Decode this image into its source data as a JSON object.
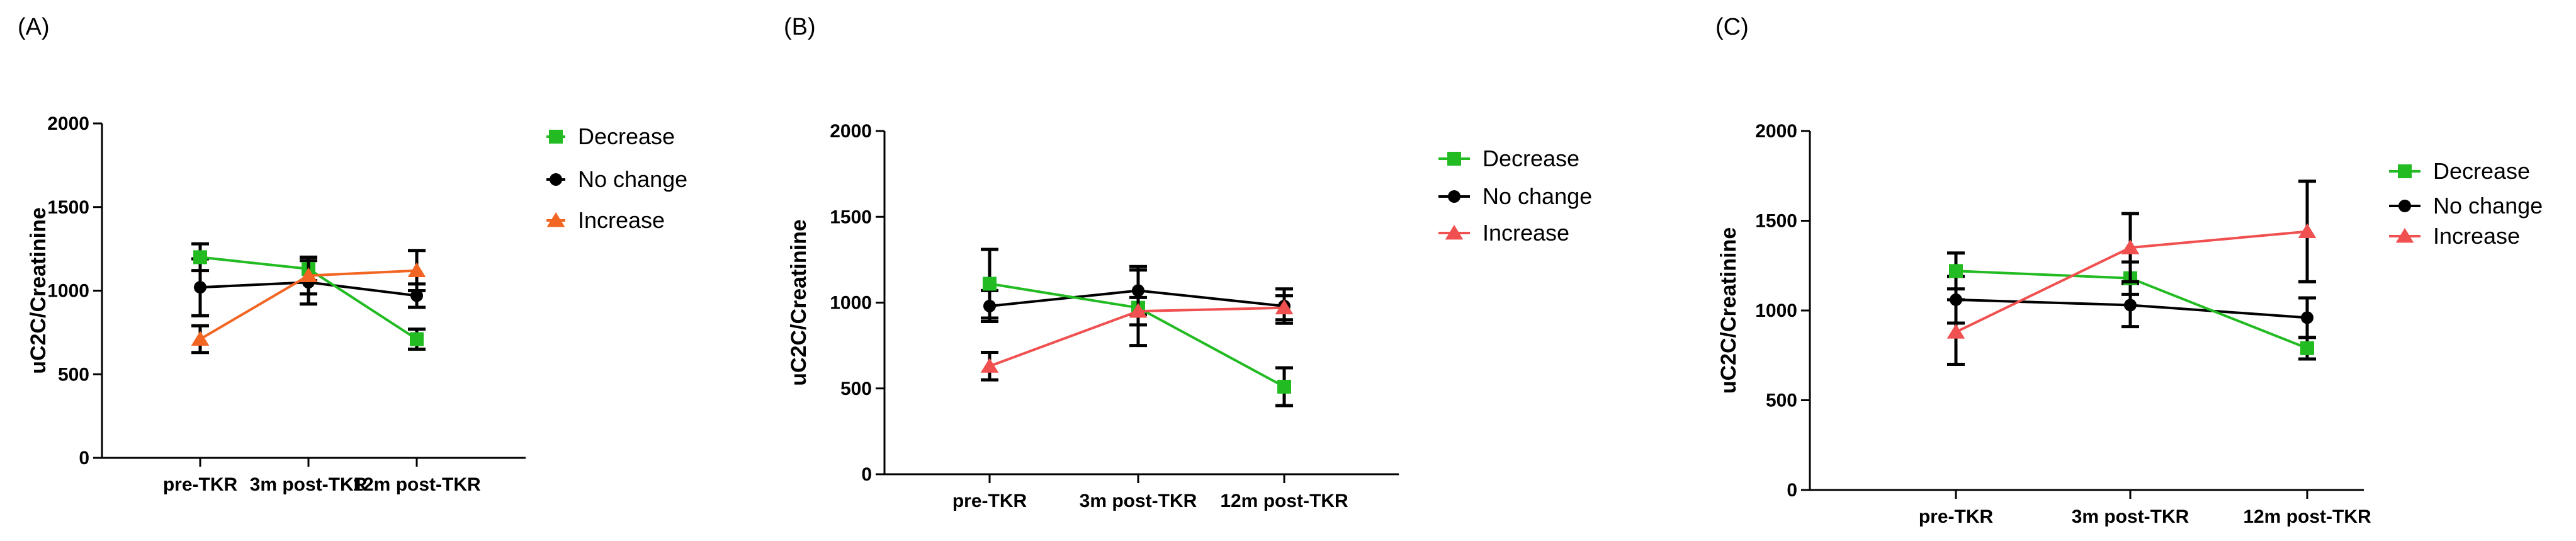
{
  "chart_data": [
    {
      "type": "line",
      "panel_label": "(A)",
      "categories": [
        "pre-TKR",
        "3m post-TKR",
        "12m post-TKR"
      ],
      "ylabel": "uC2C/Creatinine",
      "xlabel": "",
      "ylim": [
        0,
        2000
      ],
      "yticks": [
        0,
        500,
        1000,
        1500,
        2000
      ],
      "grid": false,
      "legend_position": "top-right",
      "series": [
        {
          "name": "No change",
          "color": "#000000",
          "marker": "circle",
          "values": [
            1020,
            1050,
            970
          ],
          "error": [
            170,
            130,
            70
          ]
        },
        {
          "name": "Decrease",
          "color": "#22bb22",
          "marker": "square",
          "values": [
            1200,
            1130,
            710
          ],
          "error": [
            80,
            70,
            60
          ]
        },
        {
          "name": "Increase",
          "color": "#f26522",
          "marker": "triangle",
          "values": [
            710,
            1090,
            1120
          ],
          "error": [
            80,
            110,
            120
          ]
        }
      ],
      "legend_order": [
        "Decrease",
        "No change",
        "Increase"
      ]
    },
    {
      "type": "line",
      "panel_label": "(B)",
      "categories": [
        "pre-TKR",
        "3m post-TKR",
        "12m post-TKR"
      ],
      "ylabel": "uC2C/Creatinine",
      "xlabel": "",
      "ylim": [
        0,
        2000
      ],
      "yticks": [
        0,
        500,
        1000,
        1500,
        2000
      ],
      "grid": false,
      "legend_position": "top-right",
      "series": [
        {
          "name": "No change",
          "color": "#000000",
          "marker": "circle",
          "values": [
            980,
            1070,
            980
          ],
          "error": [
            90,
            140,
            100
          ]
        },
        {
          "name": "Decrease",
          "color": "#22bb22",
          "marker": "square",
          "values": [
            1110,
            970,
            510
          ],
          "error": [
            200,
            220,
            110
          ]
        },
        {
          "name": "Increase",
          "color": "#f0504f",
          "marker": "triangle",
          "values": [
            630,
            950,
            970
          ],
          "error": [
            80,
            80,
            70
          ]
        }
      ],
      "legend_order": [
        "Decrease",
        "No change",
        "Increase"
      ]
    },
    {
      "type": "line",
      "panel_label": "(C)",
      "categories": [
        "pre-TKR",
        "3m post-TKR",
        "12m post-TKR"
      ],
      "ylabel": "uC2C/Creatinine",
      "xlabel": "",
      "ylim": [
        0,
        2000
      ],
      "yticks": [
        0,
        500,
        1000,
        1500,
        2000
      ],
      "grid": false,
      "legend_position": "top-right",
      "series": [
        {
          "name": "No change",
          "color": "#000000",
          "marker": "circle",
          "values": [
            1060,
            1030,
            960
          ],
          "error": [
            130,
            120,
            110
          ]
        },
        {
          "name": "Decrease",
          "color": "#22bb22",
          "marker": "square",
          "values": [
            1220,
            1180,
            790
          ],
          "error": [
            100,
            90,
            60
          ]
        },
        {
          "name": "Increase",
          "color": "#f0504f",
          "marker": "triangle",
          "values": [
            880,
            1350,
            1440
          ],
          "error": [
            180,
            190,
            280
          ]
        }
      ],
      "legend_order": [
        "Decrease",
        "No change",
        "Increase"
      ]
    }
  ]
}
